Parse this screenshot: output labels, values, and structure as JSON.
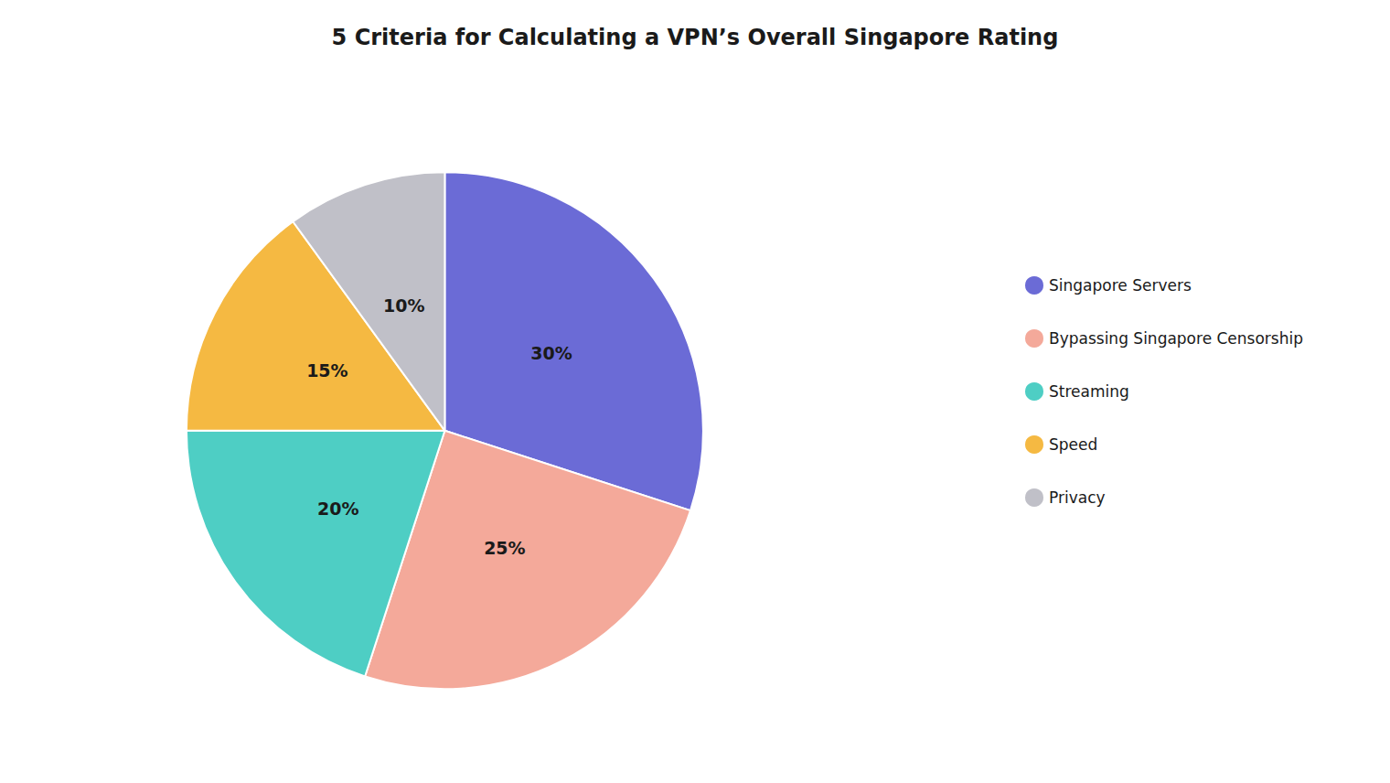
{
  "chart_data": {
    "type": "pie",
    "title": "5 Criteria for Calculating a VPN’s Overall Singapore Rating",
    "categories": [
      "Singapore Servers",
      "Bypassing Singapore Censorship",
      "Streaming",
      "Speed",
      "Privacy"
    ],
    "values": [
      30,
      25,
      20,
      15,
      10
    ],
    "value_labels": [
      "30%",
      "25%",
      "20%",
      "15%",
      "10%"
    ],
    "colors": [
      "#6B6BD6",
      "#F4A99A",
      "#4ECEC4",
      "#F5B942",
      "#C0C0C8"
    ],
    "legend": "right",
    "data_labels": true
  }
}
